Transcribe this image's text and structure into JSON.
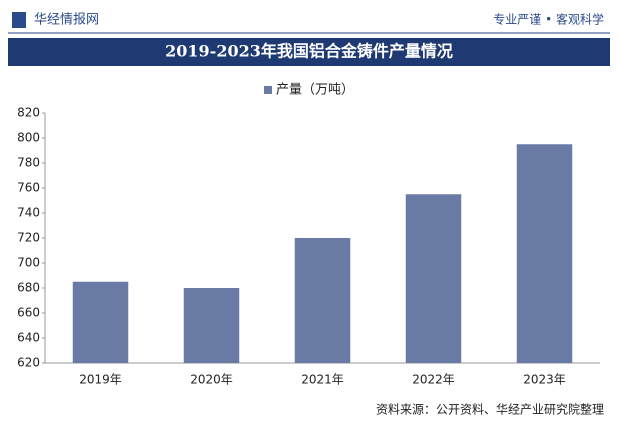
{
  "header": {
    "brand": "华经情报网",
    "slogan": "专业严谨 • 客观科学"
  },
  "source": "资料来源：公开资料、华经产业研究院整理",
  "chart_data": {
    "type": "bar",
    "title": "2019-2023年我国铝合金铸件产量情况",
    "categories": [
      "2019年",
      "2020年",
      "2021年",
      "2022年",
      "2023年"
    ],
    "series": [
      {
        "name": "产量（万吨）",
        "color": "#697aa5",
        "values": [
          685,
          680,
          720,
          755,
          795
        ]
      }
    ],
    "ylim": [
      620,
      820
    ],
    "yticks": [
      620,
      640,
      660,
      680,
      700,
      720,
      740,
      760,
      780,
      800,
      820
    ],
    "grid": false,
    "legend": "top"
  }
}
